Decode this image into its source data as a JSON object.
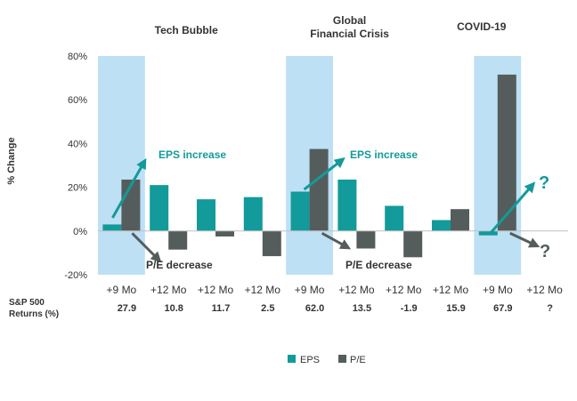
{
  "chart_data": {
    "type": "bar",
    "ylabel": "% Change",
    "ylim": [
      -20,
      80
    ],
    "yticks": [
      -20,
      0,
      20,
      40,
      60,
      80
    ],
    "ytick_labels": [
      "-20%",
      "0%",
      "20%",
      "40%",
      "60%",
      "80%"
    ],
    "categories": [
      "+9 Mo",
      "+12 Mo",
      "+12 Mo",
      "+12 Mo",
      "+9 Mo",
      "+12 Mo",
      "+12 Mo",
      "+12 Mo",
      "+9 Mo",
      "+12 Mo"
    ],
    "series": [
      {
        "name": "EPS",
        "color": "#139a9a",
        "values": [
          3,
          21,
          14.5,
          15.5,
          18,
          23.5,
          11.5,
          5,
          -2,
          null
        ]
      },
      {
        "name": "P/E",
        "color": "#555d5c",
        "values": [
          23.5,
          -8.5,
          -2.5,
          -11.5,
          37.5,
          -8,
          -12,
          10,
          71.5,
          null
        ]
      }
    ],
    "highlight_categories": [
      0,
      4,
      8
    ],
    "highlight_color": "#bde0f5",
    "periods": [
      {
        "label": "Tech Bubble",
        "category_index": 1
      },
      {
        "label": "Global Financial Crisis",
        "category_index": 4
      },
      {
        "label": "COVID-19",
        "category_index": 8
      }
    ],
    "returns_label_line1": "S&P 500",
    "returns_label_line2": "Returns (%)",
    "returns": [
      "27.9",
      "10.8",
      "11.7",
      "2.5",
      "62.0",
      "13.5",
      "-1.9",
      "15.9",
      "67.9",
      "?"
    ],
    "annotations": [
      {
        "text": "EPS increase",
        "color": "#139a9a"
      },
      {
        "text": "P/E decrease",
        "color": "#333333"
      },
      {
        "text": "EPS increase",
        "color": "#139a9a"
      },
      {
        "text": "P/E decrease",
        "color": "#333333"
      },
      {
        "text": "?",
        "color": "#139a9a"
      },
      {
        "text": "?",
        "color": "#555d5c"
      }
    ],
    "legend": {
      "placement": "bottom"
    }
  }
}
